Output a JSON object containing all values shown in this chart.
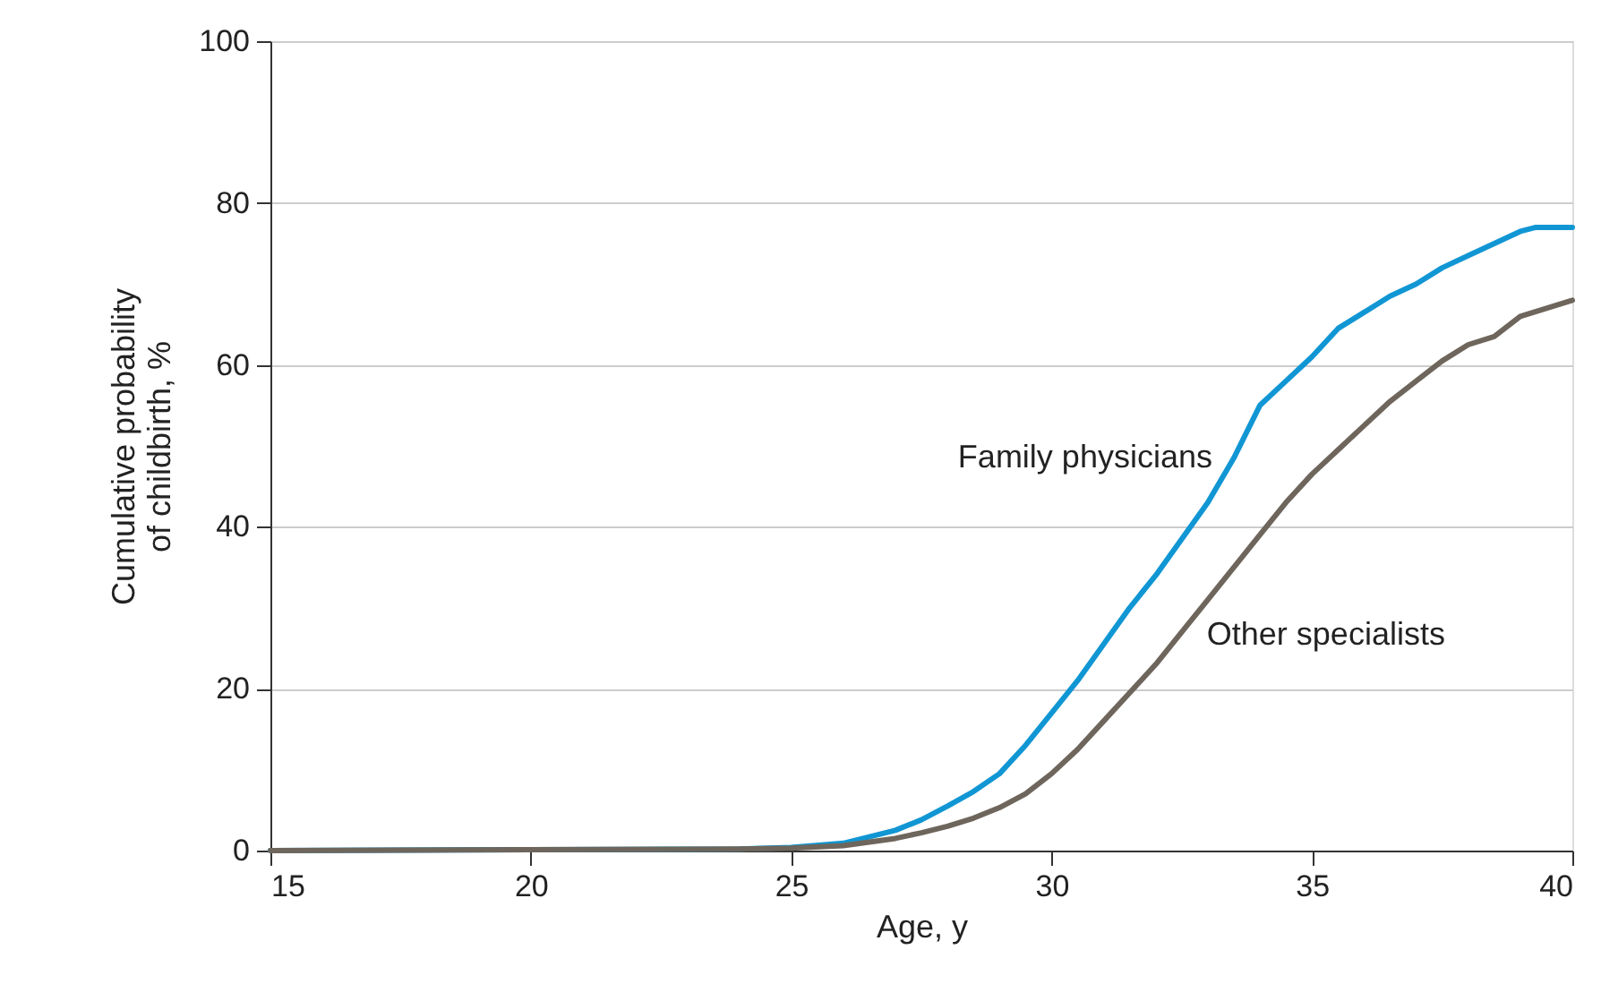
{
  "chart_data": {
    "type": "line",
    "xlabel": "Age, y",
    "ylabel": "Cumulative probability of childbirth, %",
    "xlim": [
      15,
      40
    ],
    "xticks": [
      15,
      20,
      25,
      30,
      35,
      40
    ],
    "ylim": [
      0,
      100
    ],
    "yticks": [
      0,
      20,
      40,
      60,
      80,
      100
    ],
    "grid": "y",
    "line_style": "solid",
    "marker": "none",
    "series": [
      {
        "name": "Family physicians",
        "color": "#1196d4",
        "x": [
          15,
          20,
          24,
          25,
          26,
          27,
          27.5,
          28,
          28.5,
          29,
          29.5,
          30,
          30.5,
          31,
          31.5,
          32,
          32.5,
          33,
          33.5,
          34,
          34.5,
          35,
          35.5,
          36,
          36.5,
          37,
          37.5,
          38,
          38.5,
          39,
          39.3,
          40
        ],
        "values": [
          0,
          0.1,
          0.2,
          0.4,
          0.9,
          2.5,
          3.8,
          5.5,
          7.3,
          9.5,
          13,
          17,
          21,
          25.5,
          30,
          34,
          38.5,
          43,
          48.5,
          55,
          58,
          61,
          64.5,
          66.5,
          68.5,
          70,
          72,
          73.5,
          75,
          76.5,
          77,
          77
        ]
      },
      {
        "name": "Other specialists",
        "color": "#6e665c",
        "x": [
          15,
          20,
          24,
          25,
          26,
          27,
          27.5,
          28,
          28.5,
          29,
          29.5,
          30,
          30.5,
          31,
          31.5,
          32,
          32.5,
          33,
          33.5,
          34,
          34.5,
          35,
          35.5,
          36,
          36.5,
          37,
          37.5,
          38,
          38.5,
          39,
          39.5,
          40
        ],
        "values": [
          0,
          0.1,
          0.2,
          0.3,
          0.6,
          1.5,
          2.2,
          3,
          4,
          5.3,
          7,
          9.5,
          12.5,
          16,
          19.5,
          23,
          27,
          31,
          35,
          39,
          43,
          46.5,
          49.5,
          52.5,
          55.5,
          58,
          60.5,
          62.5,
          63.5,
          66,
          67,
          68
        ]
      }
    ]
  }
}
